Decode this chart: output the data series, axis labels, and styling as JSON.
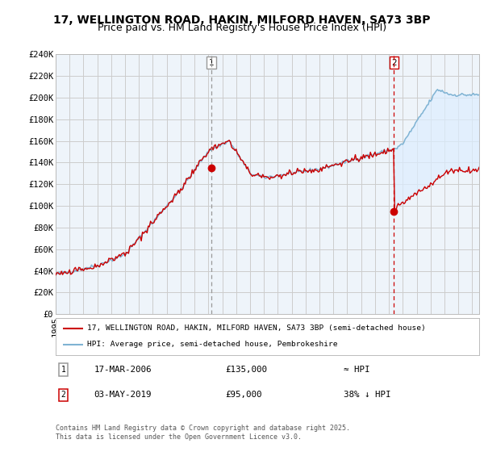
{
  "title": "17, WELLINGTON ROAD, HAKIN, MILFORD HAVEN, SA73 3BP",
  "subtitle": "Price paid vs. HM Land Registry's House Price Index (HPI)",
  "ylim": [
    0,
    240000
  ],
  "yticks": [
    0,
    20000,
    40000,
    60000,
    80000,
    100000,
    120000,
    140000,
    160000,
    180000,
    200000,
    220000,
    240000
  ],
  "ytick_labels": [
    "£0",
    "£20K",
    "£40K",
    "£60K",
    "£80K",
    "£100K",
    "£120K",
    "£140K",
    "£160K",
    "£180K",
    "£200K",
    "£220K",
    "£240K"
  ],
  "sale1_date": "17-MAR-2006",
  "sale1_price": 135000,
  "sale1_label": "≈ HPI",
  "sale2_date": "03-MAY-2019",
  "sale2_price": 95000,
  "sale2_label": "38% ↓ HPI",
  "legend_line1": "17, WELLINGTON ROAD, HAKIN, MILFORD HAVEN, SA73 3BP (semi-detached house)",
  "legend_line2": "HPI: Average price, semi-detached house, Pembrokeshire",
  "footer": "Contains HM Land Registry data © Crown copyright and database right 2025.\nThis data is licensed under the Open Government Licence v3.0.",
  "property_color": "#cc0000",
  "hpi_color": "#7fb3d3",
  "sale1_vline_color": "#999999",
  "sale2_vline_color": "#cc0000",
  "fill_color": "#ddeeff",
  "background_color": "#ffffff",
  "chart_bg_color": "#eef4fa",
  "grid_color": "#cccccc",
  "title_fontsize": 10,
  "subtitle_fontsize": 9,
  "tick_fontsize": 7.5,
  "sale1_x": 2006.21,
  "sale2_x": 2019.37,
  "xlim_start": 1995.0,
  "xlim_end": 2025.5
}
